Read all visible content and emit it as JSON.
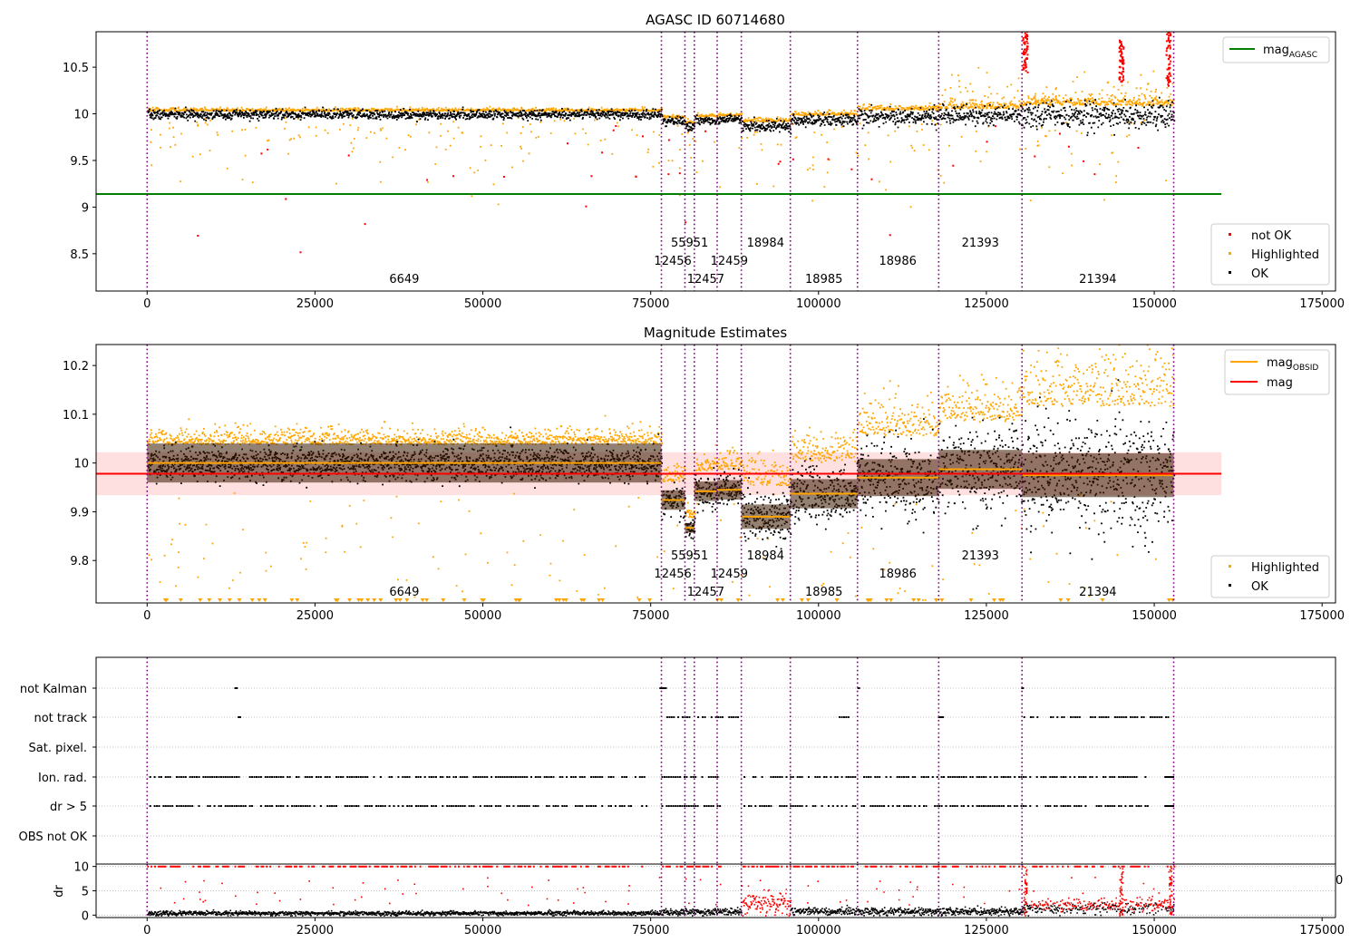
{
  "chart_data": [
    {
      "type": "scatter",
      "title": "AGASC ID 60714680",
      "xlabel": "",
      "ylabel": "",
      "xlim": [
        -7600,
        177000
      ],
      "ylim": [
        8.1,
        10.88
      ],
      "x_ticks": [
        0,
        25000,
        50000,
        75000,
        100000,
        125000,
        150000,
        175000
      ],
      "y_ticks": [
        8.5,
        9.0,
        9.5,
        10.0,
        10.5
      ],
      "obs_boundaries": [
        0,
        76600,
        80100,
        81500,
        84900,
        88500,
        95800,
        105800,
        117900,
        130300,
        152900
      ],
      "obs_labels": [
        {
          "text": "6649",
          "x": 38300,
          "row": 0
        },
        {
          "text": "12456",
          "x": 78300,
          "row": 1
        },
        {
          "text": "55951",
          "x": 80800,
          "row": 2
        },
        {
          "text": "12457",
          "x": 83200,
          "row": 0
        },
        {
          "text": "12459",
          "x": 86700,
          "row": 1
        },
        {
          "text": "18984",
          "x": 92100,
          "row": 2
        },
        {
          "text": "18985",
          "x": 100800,
          "row": 0
        },
        {
          "text": "18986",
          "x": 111800,
          "row": 1
        },
        {
          "text": "21393",
          "x": 124100,
          "row": 2
        },
        {
          "text": "21394",
          "x": 141600,
          "row": 0
        }
      ],
      "lines": [
        {
          "name": "mag_AGASC",
          "color": "#008000",
          "y": 9.14,
          "x": [
            -7600,
            160000
          ]
        }
      ],
      "series": [
        {
          "name": "not OK",
          "color": "#ff0000"
        },
        {
          "name": "Highlighted",
          "color": "#ffa500"
        },
        {
          "name": "OK",
          "color": "#000000"
        }
      ],
      "segments": [
        {
          "x": [
            0,
            76600
          ],
          "center": 10.0,
          "spread": 0.025
        },
        {
          "x": [
            76600,
            80100
          ],
          "center": 9.93,
          "spread": 0.025
        },
        {
          "x": [
            80100,
            81500
          ],
          "center": 9.87,
          "spread": 0.025
        },
        {
          "x": [
            81500,
            84900
          ],
          "center": 9.94,
          "spread": 0.025
        },
        {
          "x": [
            84900,
            88500
          ],
          "center": 9.95,
          "spread": 0.025
        },
        {
          "x": [
            88500,
            95800
          ],
          "center": 9.88,
          "spread": 0.03
        },
        {
          "x": [
            95800,
            105800
          ],
          "center": 9.94,
          "spread": 0.035
        },
        {
          "x": [
            105800,
            117900
          ],
          "center": 9.98,
          "spread": 0.045
        },
        {
          "x": [
            117900,
            130300
          ],
          "center": 9.99,
          "spread": 0.05
        },
        {
          "x": [
            130300,
            152900
          ],
          "center": 9.99,
          "spread": 0.075
        }
      ],
      "legend": {
        "placement": "top-right and lower-right",
        "entries": [
          {
            "label": "mag",
            "sub": "AGASC",
            "color": "#008000",
            "kind": "line"
          },
          {
            "label": "not OK",
            "color": "#ff0000",
            "kind": "point"
          },
          {
            "label": "Highlighted",
            "color": "#ffa500",
            "kind": "point"
          },
          {
            "label": "OK",
            "color": "#000000",
            "kind": "point"
          }
        ]
      },
      "grid": false
    },
    {
      "type": "scatter",
      "title": "Magnitude Estimates",
      "xlabel": "",
      "ylabel": "",
      "xlim": [
        -7600,
        177000
      ],
      "ylim": [
        9.713,
        10.243
      ],
      "x_ticks": [
        0,
        25000,
        50000,
        75000,
        100000,
        125000,
        150000,
        175000
      ],
      "y_ticks": [
        9.8,
        9.9,
        10.0,
        10.1,
        10.2
      ],
      "mag_line": {
        "name": "mag",
        "color": "#ff0000",
        "y": 9.978,
        "band": [
          9.934,
          10.022
        ],
        "x": [
          -7600,
          160000
        ]
      },
      "obsid_mags": [
        {
          "x": [
            0,
            76600
          ],
          "mag": 10.0
        },
        {
          "x": [
            76600,
            80100
          ],
          "mag": 9.924
        },
        {
          "x": [
            80100,
            81500
          ],
          "mag": 9.867
        },
        {
          "x": [
            81500,
            84900
          ],
          "mag": 9.942
        },
        {
          "x": [
            84900,
            88500
          ],
          "mag": 9.945
        },
        {
          "x": [
            88500,
            95800
          ],
          "mag": 9.89
        },
        {
          "x": [
            95800,
            105800
          ],
          "mag": 9.937
        },
        {
          "x": [
            105800,
            117900
          ],
          "mag": 9.97
        },
        {
          "x": [
            117900,
            130300
          ],
          "mag": 9.987
        },
        {
          "x": [
            130300,
            152900
          ],
          "mag": 9.975
        }
      ],
      "legend": {
        "placement": "top-right and lower-right",
        "entries": [
          {
            "label": "mag",
            "sub": "OBSID",
            "color": "#ffa500",
            "kind": "line"
          },
          {
            "label": "mag",
            "color": "#ff0000",
            "kind": "line"
          },
          {
            "label": "Highlighted",
            "color": "#ffa500",
            "kind": "point"
          },
          {
            "label": "OK",
            "color": "#000000",
            "kind": "point"
          }
        ]
      },
      "grid": false
    },
    {
      "type": "scatter",
      "title": "",
      "xlim": [
        -7600,
        177000
      ],
      "x_ticks": [
        0,
        25000,
        50000,
        75000,
        100000,
        125000,
        150000,
        175000
      ],
      "flag_rows": [
        "not Kalman",
        "not track",
        "Sat. pixel.",
        "Ion. rad.",
        "dr > 5",
        "OBS not OK"
      ],
      "flag_presence": {
        "not Kalman": [
          [
            13000,
            13300
          ],
          [
            76300,
            77200
          ],
          [
            105800,
            106000
          ],
          [
            130200,
            130400
          ]
        ],
        "not track": [
          [
            13500,
            13800
          ],
          [
            77000,
            88300
          ],
          [
            103000,
            104500
          ],
          [
            117800,
            118500
          ],
          [
            130500,
            152500
          ]
        ],
        "Sat. pixel.": [],
        "Ion. rad.": [
          [
            0,
            74500
          ],
          [
            76600,
            85500
          ],
          [
            88500,
            149000
          ],
          [
            151500,
            152700
          ]
        ],
        "dr > 5": [
          [
            0,
            74500
          ],
          [
            76600,
            85500
          ],
          [
            88500,
            149000
          ],
          [
            151500,
            152700
          ]
        ],
        "OBS not OK": []
      },
      "dr_panel": {
        "ylabel": "dr",
        "ylim": [
          -0.5,
          10.5
        ],
        "y_ticks": [
          0,
          5,
          10
        ],
        "typical_dr": [
          {
            "x": [
              0,
              76600
            ],
            "dr": 0.5
          },
          {
            "x": [
              76600,
              88500
            ],
            "dr": 0.8
          },
          {
            "x": [
              88500,
              95800
            ],
            "dr": 2.5
          },
          {
            "x": [
              95800,
              130300
            ],
            "dr": 0.9
          },
          {
            "x": [
              130300,
              152900
            ],
            "dr": 1.4
          }
        ]
      },
      "edge_tick_fragment": "0",
      "grid": true
    }
  ]
}
